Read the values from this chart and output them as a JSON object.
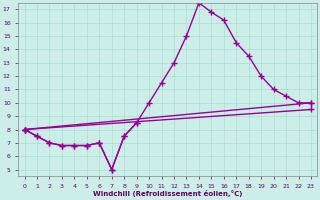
{
  "xlabel": "Windchill (Refroidissement éolien,°C)",
  "series": [
    {
      "x": [
        0,
        1,
        2,
        3,
        4,
        5,
        6,
        7,
        8,
        9
      ],
      "y": [
        8,
        7.5,
        7,
        6.8,
        6.8,
        6.8,
        7,
        5,
        7.5,
        8.5
      ]
    },
    {
      "x": [
        0,
        1,
        2,
        3,
        4,
        5,
        6,
        7,
        8,
        9,
        10,
        11,
        12,
        13,
        14,
        15,
        16,
        17,
        18,
        19,
        20,
        21,
        22,
        23
      ],
      "y": [
        8,
        7.5,
        7,
        6.8,
        6.8,
        6.8,
        7,
        5,
        7.5,
        8.5,
        10,
        11.5,
        13,
        15,
        17.5,
        16.8,
        16.2,
        14.5,
        13.5,
        12,
        11,
        10.5,
        10,
        10
      ]
    },
    {
      "x": [
        0,
        23
      ],
      "y": [
        8,
        10
      ]
    },
    {
      "x": [
        0,
        23
      ],
      "y": [
        8,
        9.5
      ]
    }
  ],
  "ylim": [
    4.5,
    17.5
  ],
  "xlim": [
    -0.5,
    23.5
  ],
  "yticks": [
    5,
    6,
    7,
    8,
    9,
    10,
    11,
    12,
    13,
    14,
    15,
    16,
    17
  ],
  "xticks": [
    0,
    1,
    2,
    3,
    4,
    5,
    6,
    7,
    8,
    9,
    10,
    11,
    12,
    13,
    14,
    15,
    16,
    17,
    18,
    19,
    20,
    21,
    22,
    23
  ],
  "line_color": "#990099",
  "bg_color": "#cceee8",
  "grid_color": "#aaddcc",
  "tick_label_color": "#660066",
  "xlabel_color": "#660066",
  "line_width": 1.0,
  "marker": "+",
  "marker_size": 4
}
